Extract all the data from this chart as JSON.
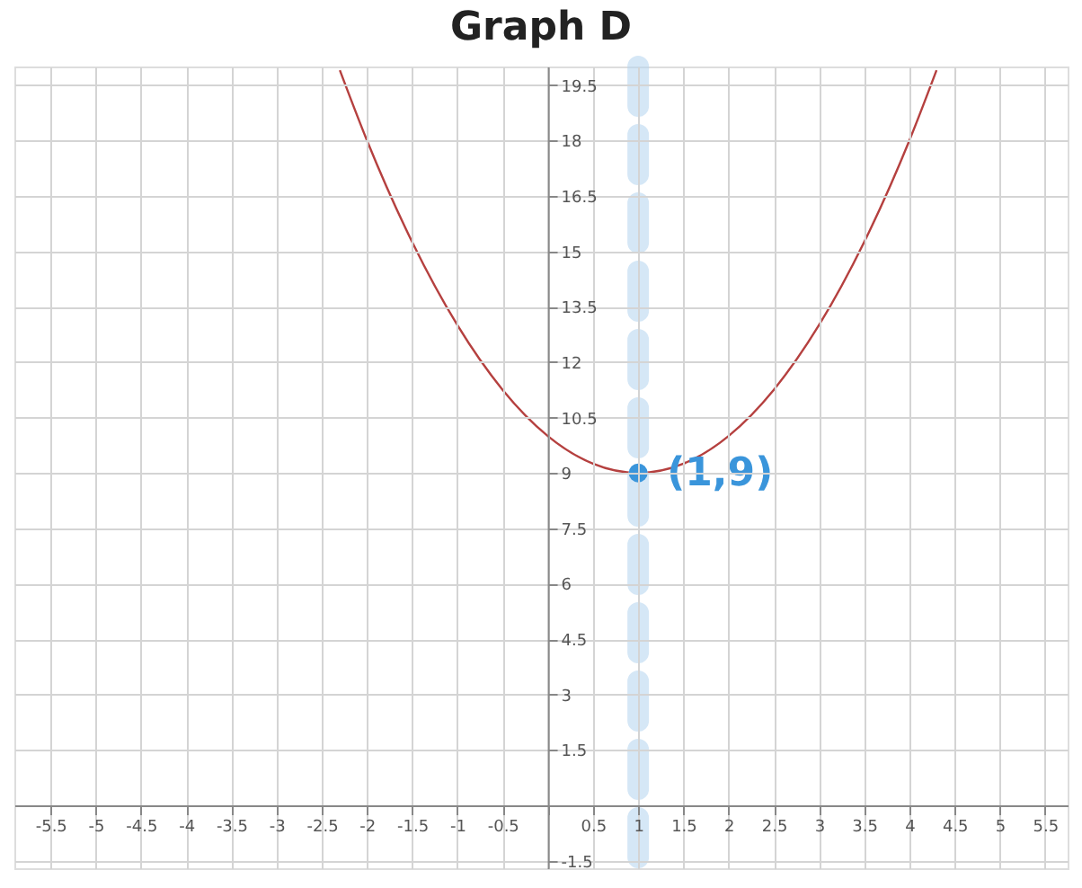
{
  "chart_data": {
    "type": "line",
    "title": "Graph D",
    "series": [
      {
        "color": "#b5403f",
        "x": [
          -2.3,
          -2,
          -1.5,
          -1,
          -0.5,
          0,
          0.5,
          1,
          1.5,
          2,
          2.5,
          3,
          3.5,
          4,
          4.3
        ],
        "values": [
          19.9,
          18,
          15.25,
          13,
          11.25,
          10,
          9.25,
          9,
          9.25,
          10,
          11.25,
          13,
          15.25,
          18,
          19.9
        ]
      },
      {
        "type": "scatter",
        "color": "#3a95db",
        "marker": "circle",
        "x": [
          1
        ],
        "values": [
          9
        ]
      }
    ],
    "xlim": [
      -5.9,
      5.75
    ],
    "ylim": [
      -1.7,
      20
    ],
    "xticks": [
      -5.5,
      -5,
      -4.5,
      -4,
      -3.5,
      -3,
      -2.5,
      -2,
      -1.5,
      -1,
      -0.5,
      {
        "value": 0,
        "label": null
      },
      0.5,
      1,
      1.5,
      2,
      2.5,
      3,
      3.5,
      4,
      4.5,
      5,
      5.5
    ],
    "yticks": [
      -1.5,
      {
        "value": 0,
        "label": null
      },
      1.5,
      3,
      4.5,
      6,
      7.5,
      9,
      10.5,
      12,
      13.5,
      15,
      16.5,
      18,
      19.5
    ],
    "grid": true,
    "ref_lines": [
      {
        "axis": "x",
        "value": 1,
        "color": "#b3d4ee",
        "line_style": "dashed"
      }
    ],
    "annotations": [
      {
        "text": "(1,9)",
        "x": 1,
        "y": 9
      }
    ]
  }
}
